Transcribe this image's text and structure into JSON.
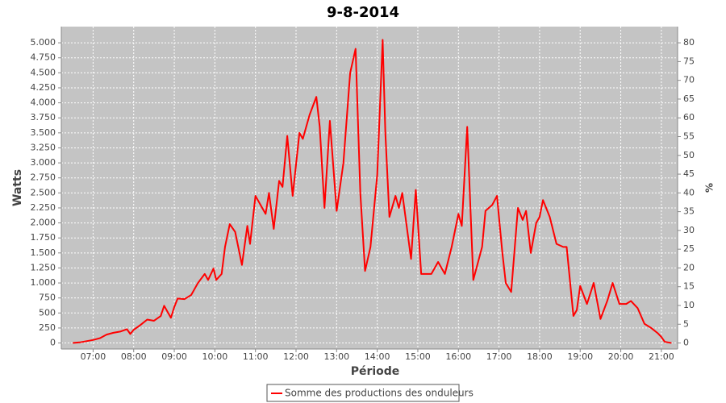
{
  "chart_data": {
    "type": "line",
    "title": "9-8-2014",
    "x_label": "Période",
    "y_label": "Watts",
    "y2_label": "%",
    "x": [
      "06:30",
      "06:40",
      "06:50",
      "07:00",
      "07:10",
      "07:20",
      "07:30",
      "07:40",
      "07:50",
      "07:55",
      "08:00",
      "08:10",
      "08:20",
      "08:30",
      "08:40",
      "08:45",
      "08:55",
      "09:00",
      "09:05",
      "09:15",
      "09:25",
      "09:35",
      "09:45",
      "09:50",
      "09:58",
      "10:02",
      "10:10",
      "10:15",
      "10:22",
      "10:30",
      "10:40",
      "10:48",
      "10:52",
      "11:00",
      "11:10",
      "11:15",
      "11:20",
      "11:27",
      "11:35",
      "11:40",
      "11:47",
      "11:55",
      "12:05",
      "12:10",
      "12:20",
      "12:30",
      "12:35",
      "12:42",
      "12:50",
      "13:00",
      "13:10",
      "13:20",
      "13:28",
      "13:35",
      "13:42",
      "13:50",
      "14:00",
      "14:08",
      "14:12",
      "14:18",
      "14:27",
      "14:32",
      "14:37",
      "14:50",
      "14:57",
      "15:05",
      "15:20",
      "15:30",
      "15:40",
      "15:50",
      "16:00",
      "16:05",
      "16:13",
      "16:22",
      "16:35",
      "16:40",
      "16:50",
      "16:57",
      "17:05",
      "17:10",
      "17:18",
      "17:28",
      "17:35",
      "17:40",
      "17:47",
      "17:55",
      "18:00",
      "18:05",
      "18:15",
      "18:25",
      "18:35",
      "18:40",
      "18:50",
      "18:55",
      "19:00",
      "19:10",
      "19:20",
      "19:30",
      "19:40",
      "19:48",
      "19:58",
      "20:08",
      "20:15",
      "20:25",
      "20:35",
      "20:45",
      "20:55",
      "21:00",
      "21:05",
      "21:15"
    ],
    "series": [
      {
        "name": "Somme des productions des onduleurs",
        "color": "#ff0000",
        "values": [
          0,
          10,
          30,
          50,
          80,
          140,
          170,
          190,
          230,
          150,
          220,
          300,
          390,
          370,
          450,
          620,
          420,
          600,
          740,
          730,
          800,
          1000,
          1150,
          1050,
          1240,
          1050,
          1150,
          1600,
          1980,
          1850,
          1300,
          1950,
          1650,
          2450,
          2250,
          2150,
          2500,
          1900,
          2700,
          2600,
          3450,
          2450,
          3500,
          3400,
          3800,
          4100,
          3600,
          2250,
          3700,
          2200,
          3000,
          4500,
          4900,
          2500,
          1200,
          1600,
          2800,
          5050,
          3500,
          2100,
          2450,
          2250,
          2500,
          1400,
          2550,
          1150,
          1150,
          1350,
          1150,
          1600,
          2150,
          1950,
          3600,
          1050,
          1600,
          2200,
          2300,
          2450,
          1500,
          1000,
          850,
          2250,
          2050,
          2200,
          1500,
          2000,
          2100,
          2380,
          2100,
          1650,
          1600,
          1600,
          450,
          550,
          950,
          650,
          1000,
          400,
          700,
          1000,
          650,
          650,
          700,
          580,
          320,
          250,
          160,
          100,
          20,
          0
        ]
      }
    ],
    "xlim": [
      "06:13",
      "21:24"
    ],
    "xticks": [
      "07:00",
      "08:00",
      "09:00",
      "10:00",
      "11:00",
      "12:00",
      "13:00",
      "14:00",
      "15:00",
      "16:00",
      "17:00",
      "18:00",
      "19:00",
      "20:00",
      "21:00"
    ],
    "ylim": [
      -100,
      5270
    ],
    "yticks": [
      0,
      250,
      500,
      750,
      {
        "value": 1000,
        "label": "1.000"
      },
      {
        "value": 1250,
        "label": "1.250"
      },
      {
        "value": 1500,
        "label": "1.500"
      },
      {
        "value": 1750,
        "label": "1.750"
      },
      {
        "value": 2000,
        "label": "2.000"
      },
      {
        "value": 2250,
        "label": "2.250"
      },
      {
        "value": 2500,
        "label": "2.500"
      },
      {
        "value": 2750,
        "label": "2.750"
      },
      {
        "value": 3000,
        "label": "3.000"
      },
      {
        "value": 3250,
        "label": "3.250"
      },
      {
        "value": 3500,
        "label": "3.500"
      },
      {
        "value": 3750,
        "label": "3.750"
      },
      {
        "value": 4000,
        "label": "4.000"
      },
      {
        "value": 4250,
        "label": "4.250"
      },
      {
        "value": 4500,
        "label": "4.500"
      },
      {
        "value": 4750,
        "label": "4.750"
      },
      {
        "value": 5000,
        "label": "5.000"
      }
    ],
    "y2lim": [
      -1.6,
      84.32
    ],
    "y2ticks": [
      0,
      5,
      10,
      15,
      20,
      25,
      30,
      35,
      40,
      45,
      50,
      55,
      60,
      65,
      70,
      75,
      80
    ],
    "grid": true,
    "legend": "bottom"
  }
}
